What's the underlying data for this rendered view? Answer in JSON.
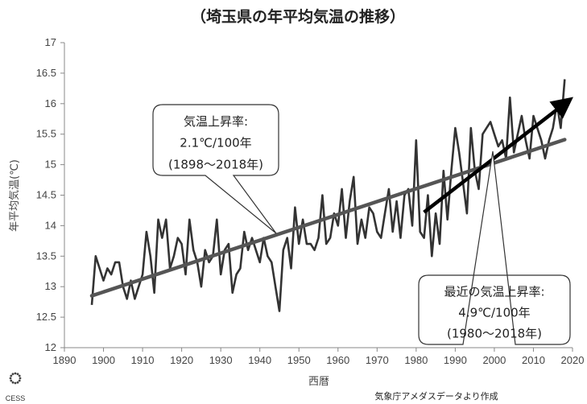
{
  "chart_data": {
    "type": "line",
    "title": "（埼玉県の年平均気温の推移）",
    "xlabel": "西暦",
    "ylabel": "年平均気温(℃)",
    "xlim": [
      1890,
      2020
    ],
    "ylim": [
      12,
      17
    ],
    "x_ticks": [
      1890,
      1900,
      1910,
      1920,
      1930,
      1940,
      1950,
      1960,
      1970,
      1980,
      1990,
      2000,
      2010,
      2020
    ],
    "y_ticks": [
      "12",
      "12.5",
      "13",
      "13.5",
      "14",
      "14.5",
      "15",
      "15.5",
      "16",
      "16.5",
      "17"
    ],
    "grid": false,
    "series": [
      {
        "x": [
          1897,
          1898,
          1899,
          1900,
          1901,
          1902,
          1903,
          1904,
          1905,
          1906,
          1907,
          1908,
          1909,
          1910,
          1911,
          1912,
          1913,
          1914,
          1915,
          1916,
          1917,
          1918,
          1919,
          1920,
          1921,
          1922,
          1923,
          1924,
          1925,
          1926,
          1927,
          1928,
          1929,
          1930,
          1931,
          1932,
          1933,
          1934,
          1935,
          1936,
          1937,
          1938,
          1939,
          1940,
          1941,
          1942,
          1943,
          1944,
          1945,
          1946,
          1947,
          1948,
          1949,
          1950,
          1951,
          1952,
          1953,
          1954,
          1955,
          1956,
          1957,
          1958,
          1959,
          1960,
          1961,
          1962,
          1963,
          1964,
          1965,
          1966,
          1967,
          1968,
          1969,
          1970,
          1971,
          1972,
          1973,
          1974,
          1975,
          1976,
          1977,
          1978,
          1979,
          1980,
          1981,
          1982,
          1983,
          1984,
          1985,
          1986,
          1987,
          1988,
          1989,
          1990,
          1991,
          1992,
          1993,
          1994,
          1995,
          1996,
          1997,
          1998,
          1999,
          2000,
          2001,
          2002,
          2003,
          2004,
          2005,
          2006,
          2007,
          2008,
          2009,
          2010,
          2011,
          2012,
          2013,
          2014,
          2015,
          2016,
          2017,
          2018
        ],
        "values": [
          12.7,
          13.5,
          13.3,
          13.1,
          13.3,
          13.2,
          13.4,
          13.4,
          13.0,
          12.8,
          13.1,
          12.8,
          13.0,
          13.2,
          13.9,
          13.5,
          12.9,
          14.1,
          13.8,
          14.1,
          13.3,
          13.5,
          13.8,
          13.7,
          13.2,
          14.1,
          13.6,
          13.4,
          13.0,
          13.6,
          13.4,
          13.5,
          14.1,
          13.2,
          13.6,
          13.7,
          12.9,
          13.2,
          13.3,
          13.9,
          13.6,
          13.8,
          13.6,
          13.4,
          13.8,
          13.5,
          13.4,
          13.0,
          12.6,
          13.6,
          13.8,
          13.3,
          14.3,
          13.7,
          14.1,
          13.7,
          13.7,
          13.6,
          13.8,
          14.5,
          13.7,
          13.8,
          14.2,
          14.0,
          14.6,
          13.8,
          14.4,
          14.8,
          13.7,
          14.1,
          13.8,
          14.3,
          14.2,
          13.9,
          13.8,
          14.2,
          14.6,
          13.9,
          14.4,
          13.8,
          14.5,
          14.6,
          14.0,
          15.4,
          13.9,
          13.8,
          14.5,
          13.5,
          14.2,
          13.7,
          14.9,
          14.1,
          14.9,
          15.6,
          15.2,
          14.7,
          14.2,
          15.6,
          14.9,
          14.6,
          15.5,
          15.6,
          15.7,
          15.5,
          15.3,
          15.4,
          15.1,
          16.1,
          15.2,
          15.5,
          15.8,
          15.4,
          15.1,
          15.8,
          15.6,
          15.4,
          15.1,
          15.4,
          15.6,
          16.0,
          15.6,
          16.4
        ]
      }
    ],
    "trend_lines": [
      {
        "x": [
          1897,
          2018
        ],
        "values": [
          12.85,
          15.41
        ]
      },
      {
        "x": [
          1982,
          2018
        ],
        "values": [
          14.22,
          16.0
        ]
      }
    ],
    "annotations": [
      {
        "lines": [
          "気温上昇率:",
          "2.1℃/100年",
          "(1898〜2018年)"
        ]
      },
      {
        "lines": [
          "最近の気温上昇率:",
          "4.9℃/100年",
          "(1980〜2018年)"
        ]
      }
    ],
    "source": "気象庁アメダスデータより作成",
    "logo_text": "CESS",
    "colors": {
      "line": "#333333",
      "trend": "#555555",
      "arrow": "#000000"
    }
  }
}
